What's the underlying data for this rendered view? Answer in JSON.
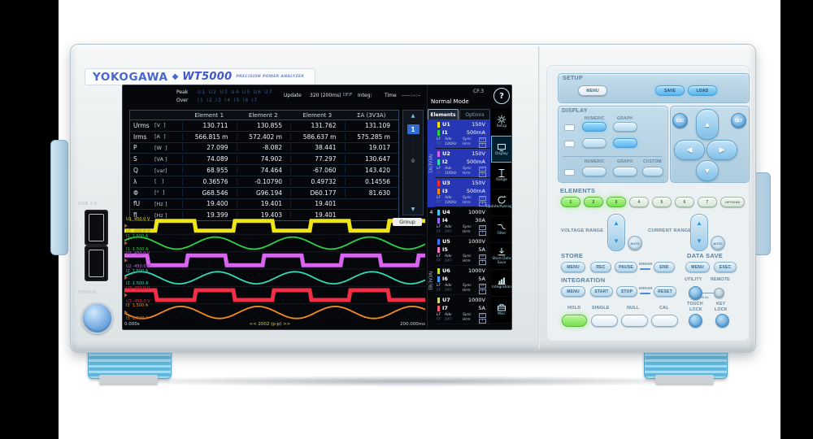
{
  "device": {
    "brand": "YOKOGAWA",
    "diamond": "◆",
    "model": "WT5000",
    "tagline": "PRECISION POWER ANALYZER",
    "usb_label": "USB 2.0",
    "power_label": "POWER"
  },
  "screen": {
    "status": {
      "peak_label": "Peak",
      "peak_items": "U1 U2 U3 U4 U5 U6 U7",
      "over_label": "Over",
      "over_items": "I1 I2 I3 I4 I5 I6 I7",
      "update_label": "Update",
      "update_value": "320 (200ms)",
      "update_suffix": "DF/F",
      "integ_label": "Integ:",
      "time_label": "Time",
      "time_value": "-----:--:--",
      "mode": "Normal Mode",
      "cf": "CF:3",
      "help": "?"
    },
    "table": {
      "headers": [
        "Element 1",
        "Element 2",
        "Element 3",
        "ΣA (3V3A)"
      ],
      "rows": [
        {
          "name": "Urms",
          "unit": "[V  ]",
          "values": [
            "130.711",
            "130.855",
            "131.762",
            "131.109"
          ]
        },
        {
          "name": "Irms",
          "unit": "[A  ]",
          "values": [
            "566.815 m",
            "572.402 m",
            "586.637 m",
            "575.285 m"
          ]
        },
        {
          "name": "P",
          "unit": "[W  ]",
          "values": [
            "27.099",
            "-8.082",
            "38.441",
            "19.017"
          ]
        },
        {
          "name": "S",
          "unit": "[VA ]",
          "values": [
            "74.089",
            "74.902",
            "77.297",
            "130.647"
          ]
        },
        {
          "name": "Q",
          "unit": "[var]",
          "values": [
            "68.955",
            "74.464",
            "-67.060",
            "143.420"
          ]
        },
        {
          "name": "λ",
          "unit": "[   ]",
          "values": [
            "0.36576",
            "-0.10790",
            "0.49732",
            "0.14556"
          ]
        },
        {
          "name": "Φ",
          "unit": "[°  ]",
          "values": [
            "G68.546",
            "G96.194",
            "D60.177",
            "81.630"
          ]
        },
        {
          "name": "fU",
          "unit": "[Hz ]",
          "values": [
            "19.400",
            "19.401",
            "19.401",
            ""
          ]
        },
        {
          "name": "fI",
          "unit": "[Hz ]",
          "values": [
            "19.399",
            "19.403",
            "19.401",
            ""
          ]
        }
      ]
    },
    "pager": {
      "up": "▲",
      "current": "1",
      "dot": "·",
      "last": "9",
      "down": "▼"
    },
    "wave": {
      "group": "Group",
      "t0": "0.000s",
      "tc": "<< 2002 (p-p) >>",
      "t1": "200.000ms",
      "cycles": 3.9,
      "traces": [
        {
          "ch": "U1",
          "type": "square",
          "color": "#f0e414",
          "label_top": "U1  450.0 V",
          "label_bot": "U1 -450.0 V",
          "phase": 3.65
        },
        {
          "ch": "I1",
          "type": "sine",
          "color": "#2fd148",
          "label_top": "I1  1.500 A",
          "label_bot": "I1 -1.500 A",
          "phase": 0.45
        },
        {
          "ch": "U2",
          "type": "square",
          "color": "#d964ef",
          "label_top": "U2  450.0 V",
          "label_bot": "U2 -450.0 V",
          "phase": 1.18
        },
        {
          "ch": "I2",
          "type": "sine",
          "color": "#35d9b5",
          "label_top": "I2  1.500 A",
          "label_bot": "I2 -1.500 A",
          "phase": 0.25
        },
        {
          "ch": "U3",
          "type": "square",
          "color": "#f22e44",
          "label_top": "U3  450.0 V",
          "label_bot": "U3 -450.0 V",
          "phase": 0.5
        },
        {
          "ch": "I3",
          "type": "sine",
          "color": "#f58b1f",
          "label_top": "I3  1.500 A",
          "label_bot": "I3 -1.500 A",
          "phase": 3.25
        }
      ]
    },
    "sidebar": {
      "tabs": [
        "Elements",
        "Options"
      ],
      "block_a": "ΣA(3V3A)",
      "block_4": "4",
      "block_b": "ΣB(3V3A)",
      "groups": [
        {
          "u": "U1",
          "ur": "150V",
          "uc": "#f0e414",
          "i": "I1",
          "ir": "500mA",
          "ic": "#2fd148",
          "lf": "LF",
          "ff": "FF",
          "adv": "Adv",
          "freq": "100Hz",
          "sync": "Sync",
          "hrm": "Hrm",
          "b1": "U1",
          "b2": "1"
        },
        {
          "u": "U2",
          "ur": "150V",
          "uc": "#d964ef",
          "i": "I2",
          "ir": "500mA",
          "ic": "#35d9b5",
          "lf": "LF",
          "ff": "FF",
          "adv": "Adv",
          "freq": "100Hz",
          "sync": "Sync",
          "hrm": "Hrm",
          "b1": "U2",
          "b2": "1"
        },
        {
          "u": "U3",
          "ur": "150V",
          "uc": "#f2303f",
          "i": "I3",
          "ir": "500mA",
          "ic": "#f58b1f",
          "lf": "LF",
          "ff": "FF",
          "adv": "Adv",
          "freq": "100Hz",
          "sync": "Sync",
          "hrm": "Hrm",
          "b1": "U3",
          "b2": "1"
        },
        {
          "u": "U4",
          "ur": "1000V",
          "uc": "#3fc9ea",
          "i": "I4",
          "ir": "30A",
          "ic": "#9a6af0",
          "lf": "LF",
          "ff": "FF",
          "adv": "Adv",
          "freq": "OFF",
          "sync": "Sync",
          "hrm": "Hrm",
          "b1": "U4",
          "b2": "1"
        },
        {
          "u": "U5",
          "ur": "1000V",
          "uc": "#3f7bf0",
          "i": "I5",
          "ir": "5A",
          "ic": "#f07ac8",
          "lf": "LF",
          "ff": "FF",
          "adv": "Adv",
          "freq": "OFF",
          "sync": "Sync",
          "hrm": "Hrm",
          "b1": "U5",
          "b2": "1"
        },
        {
          "u": "U6",
          "ur": "1000V",
          "uc": "#c6e332",
          "i": "I6",
          "ir": "5A",
          "ic": "#4a9af0",
          "lf": "LF",
          "ff": "FF",
          "adv": "Adv",
          "freq": "OFF",
          "sync": "Sync",
          "hrm": "Hrm",
          "b1": "U6",
          "b2": "1"
        },
        {
          "u": "U7",
          "ur": "1000V",
          "uc": "#cfd96a",
          "i": "I7",
          "ir": "5A",
          "ic": "#f05a72",
          "lf": "LF",
          "ff": "FF",
          "adv": "Adv",
          "freq": "OFF",
          "sync": "Sync",
          "hrm": "Hrm",
          "b1": "U7",
          "b2": "1"
        }
      ]
    },
    "menu": [
      {
        "label": "Setup"
      },
      {
        "label": "Display"
      },
      {
        "label": "Range"
      },
      {
        "label": "Update/Averaging"
      },
      {
        "label": "Filter"
      },
      {
        "label": "Store Data Save"
      },
      {
        "label": "Integration"
      },
      {
        "label": "Misc"
      }
    ]
  },
  "panel": {
    "setup": {
      "title": "SETUP",
      "menu": "MENU",
      "save": "SAVE",
      "load": "LOAD"
    },
    "display": {
      "title": "DISPLAY",
      "numeric": "NUMERIC",
      "graph": "GRAPH",
      "custom": "CUSTOM"
    },
    "nav": {
      "esc": "ESC",
      "set": "SET",
      "up": "▲",
      "down": "▼",
      "left": "◀",
      "right": "▶"
    },
    "elements": {
      "title": "ELEMENTS",
      "buttons": [
        "1",
        "2",
        "3",
        "4",
        "5",
        "6",
        "7"
      ],
      "options": "OPTIONS"
    },
    "ranges": {
      "voltage": "VOLTAGE RANGE",
      "current": "CURRENT RANGE",
      "auto": "AUTO",
      "up": "▲",
      "down": "▼"
    },
    "store": {
      "title": "STORE",
      "menu": "MENU",
      "rec": "REC",
      "pause": "PAUSE",
      "error": "ERROR",
      "end": "END"
    },
    "datasave": {
      "title": "DATA SAVE",
      "menu": "MENU",
      "exec": "EXEC"
    },
    "integration": {
      "title": "INTEGRATION",
      "menu": "MENU",
      "start": "START",
      "stop": "STOP",
      "error": "ERROR",
      "reset": "RESET"
    },
    "utility": {
      "utility": "UTILITY",
      "remote": "REMOTE",
      "local": "LOCAL"
    },
    "bottom": {
      "hold": "HOLD",
      "single": "SINGLE",
      "nullb": "NULL",
      "cal": "CAL",
      "touch1": "TOUCH",
      "touch2": "LOCK",
      "key1": "KEY",
      "key2": "LOCK"
    }
  }
}
